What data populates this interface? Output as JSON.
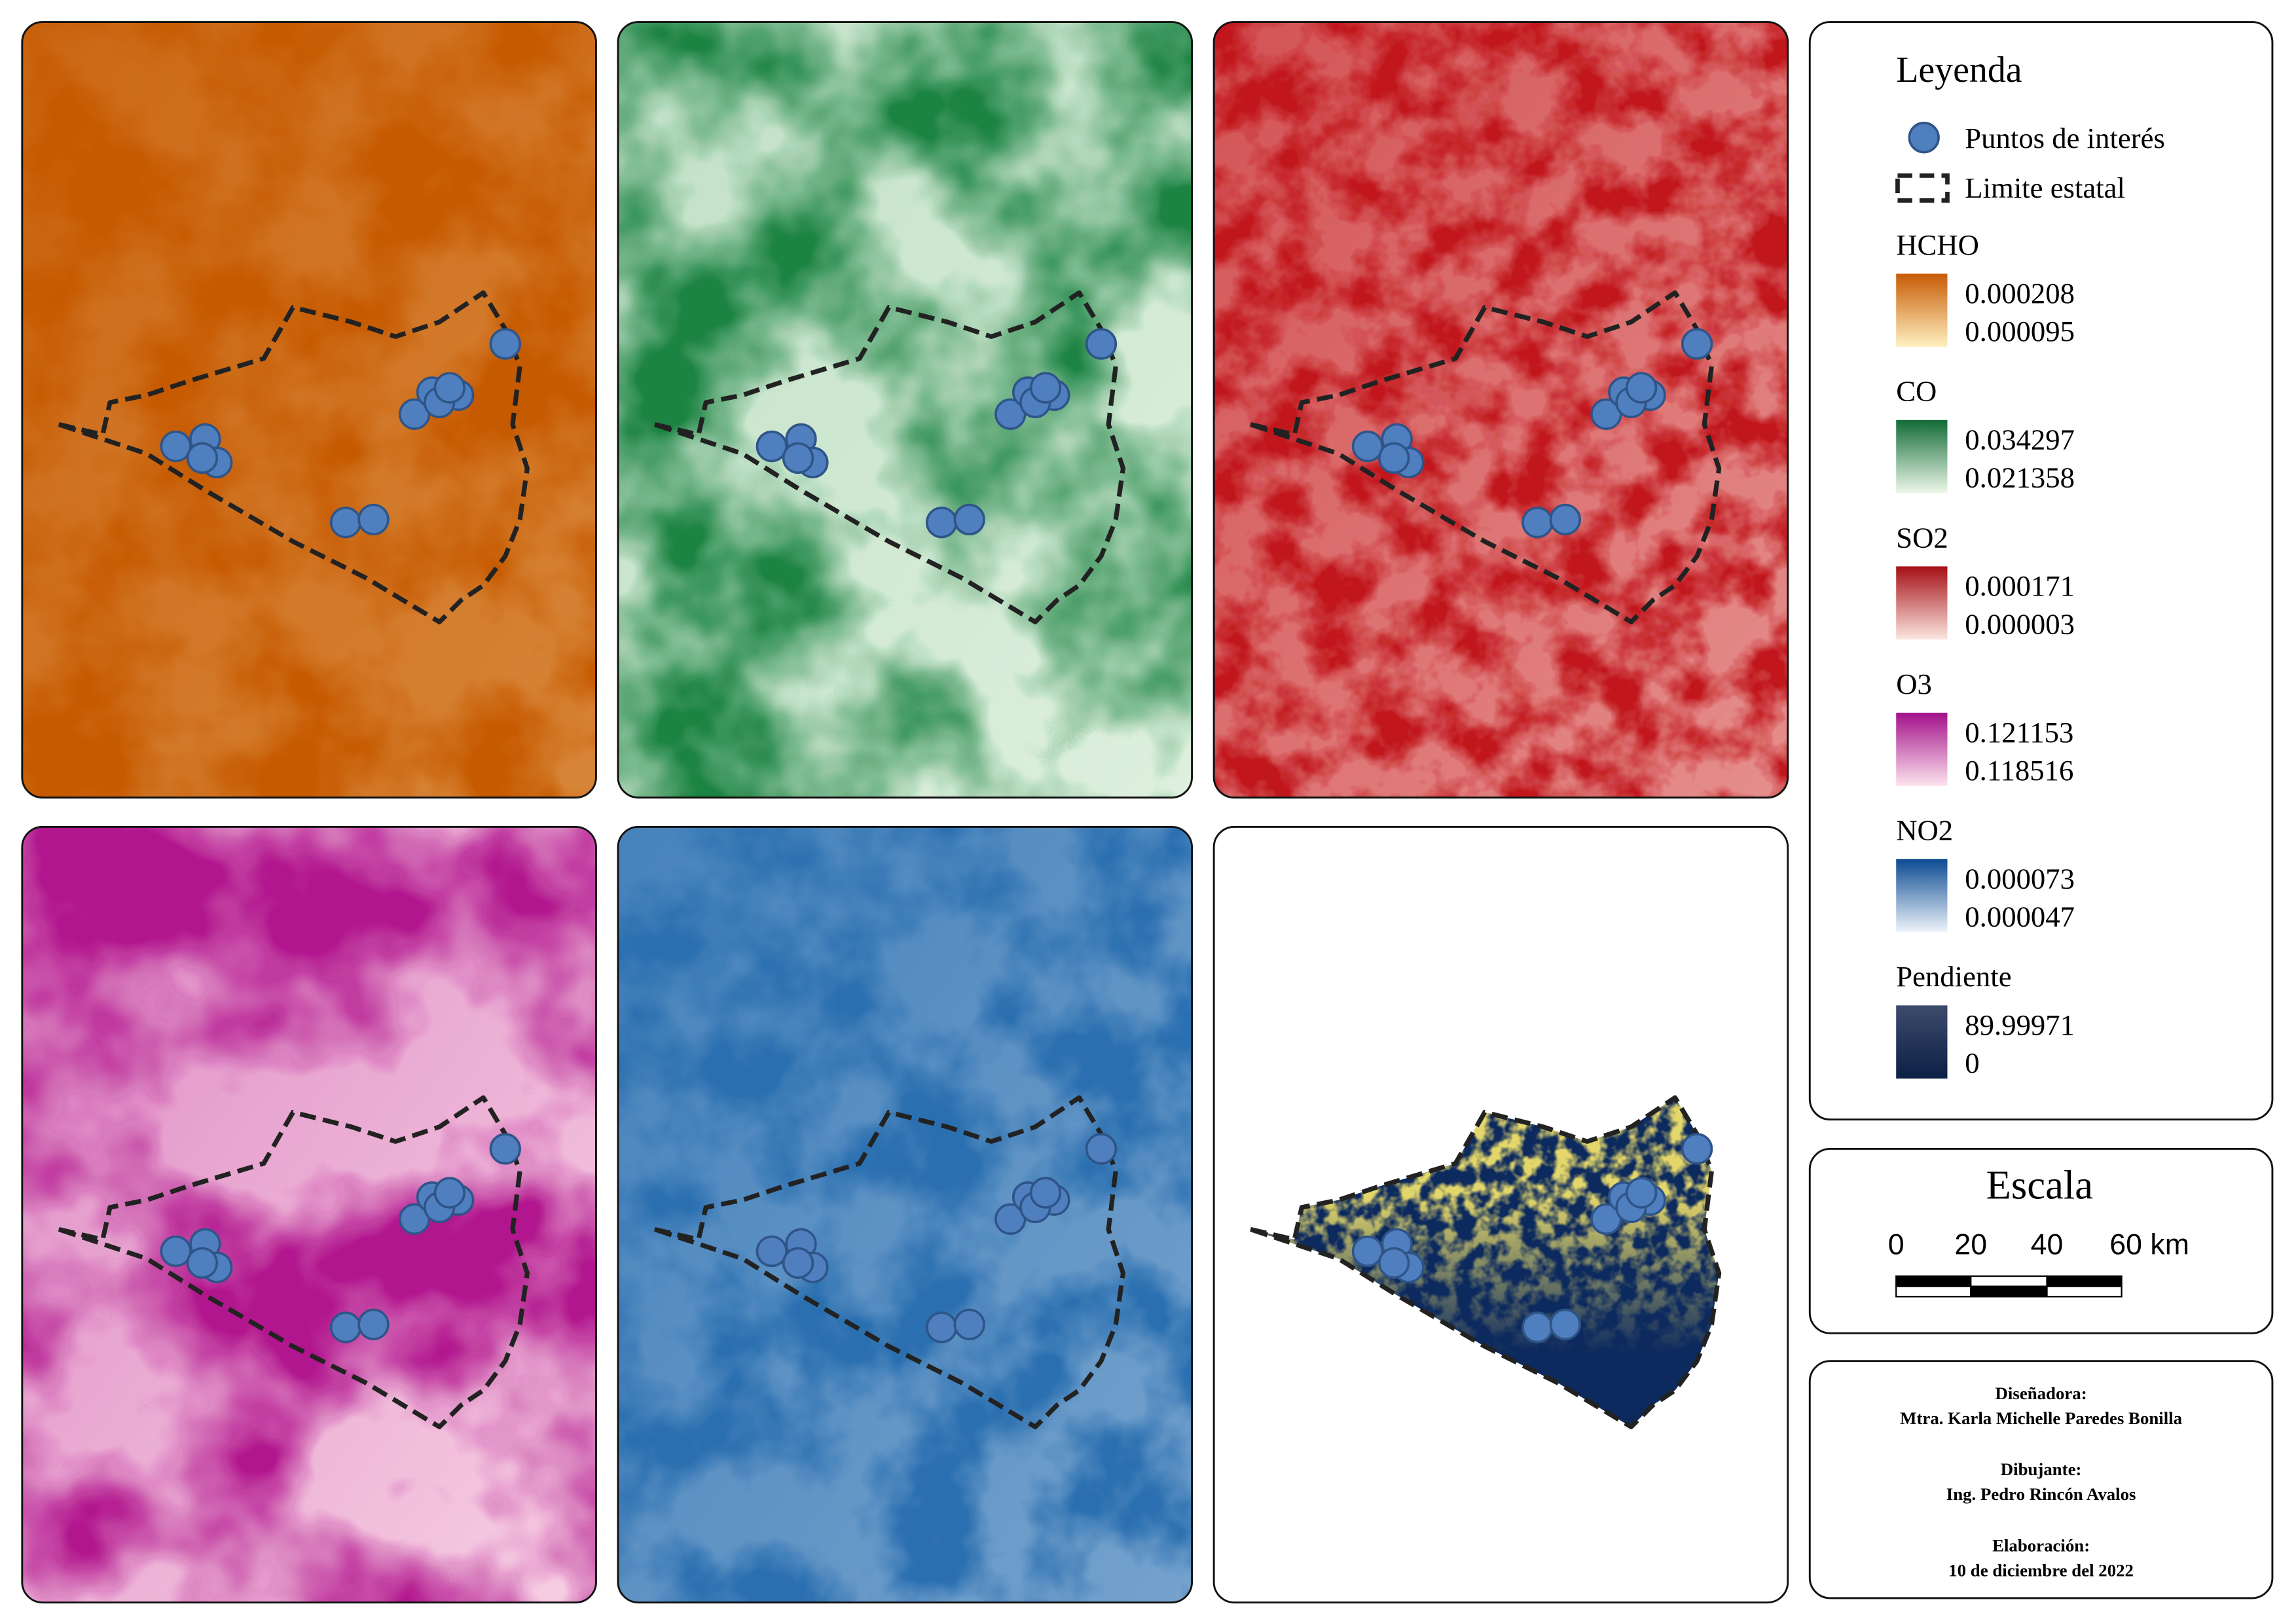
{
  "legend": {
    "title": "Leyenda",
    "items": [
      "Puntos de interés",
      "Limite estatal"
    ],
    "layers": [
      {
        "name": "HCHO",
        "max": "0.000208",
        "min": "0.000095"
      },
      {
        "name": "CO",
        "max": "0.034297",
        "min": "0.021358"
      },
      {
        "name": "SO2",
        "max": "0.000171",
        "min": "0.000003"
      },
      {
        "name": "O3",
        "max": "0.121153",
        "min": "0.118516"
      },
      {
        "name": "NO2",
        "max": "0.000073",
        "min": "0.000047"
      },
      {
        "name": "Pendiente",
        "max": "89.99971",
        "min": "0"
      }
    ]
  },
  "scale": {
    "title": "Escala",
    "labels": [
      "0",
      "20",
      "40",
      "60 km"
    ]
  },
  "credits": {
    "designer_label": "Diseñadora:",
    "designer": "Mtra. Karla Michelle Paredes Bonilla",
    "drafter_label": "Dibujante:",
    "drafter": "Ing. Pedro Rincón Avalos",
    "date_label": "Elaboración:",
    "date": "10 de diciembre del 2022"
  }
}
